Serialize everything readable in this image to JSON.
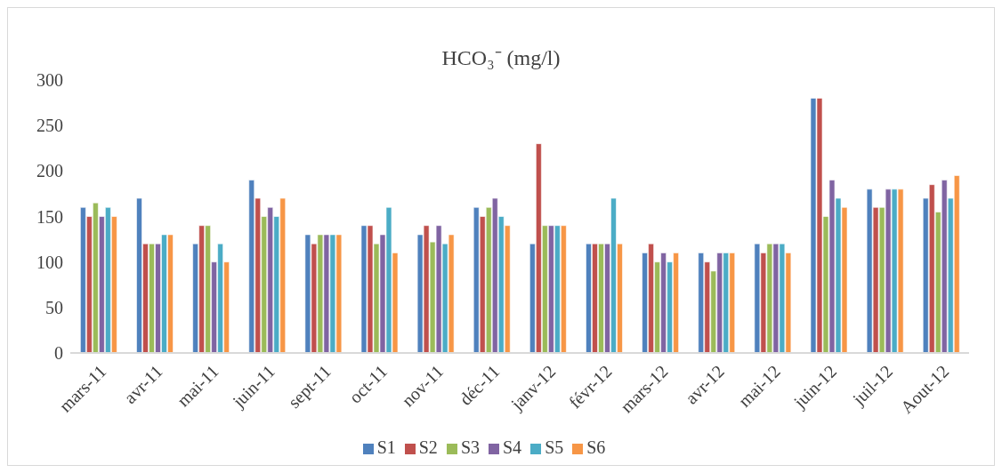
{
  "chart_data": {
    "type": "bar",
    "title": "HCO₃⁻ (mg/l)",
    "categories": [
      "mars-11",
      "avr-11",
      "mai-11",
      "juin-11",
      "sept-11",
      "oct-11",
      "nov-11",
      "déc-11",
      "janv-12",
      "févr-12",
      "mars-12",
      "avr-12",
      "mai-12",
      "juin-12",
      "juil-12",
      "Aout-12"
    ],
    "series": [
      {
        "name": "S1",
        "color": "#4f81bd",
        "values": [
          160,
          170,
          120,
          190,
          130,
          140,
          130,
          160,
          120,
          120,
          110,
          110,
          120,
          280,
          180,
          170
        ]
      },
      {
        "name": "S2",
        "color": "#c0504d",
        "values": [
          150,
          120,
          140,
          170,
          120,
          140,
          140,
          150,
          230,
          120,
          120,
          100,
          110,
          280,
          160,
          185
        ]
      },
      {
        "name": "S3",
        "color": "#9bbb59",
        "values": [
          165,
          120,
          140,
          150,
          130,
          120,
          122,
          160,
          140,
          120,
          100,
          90,
          120,
          150,
          160,
          155
        ]
      },
      {
        "name": "S4",
        "color": "#8064a2",
        "values": [
          150,
          120,
          100,
          160,
          130,
          130,
          140,
          170,
          140,
          120,
          110,
          110,
          120,
          190,
          180,
          190
        ]
      },
      {
        "name": "S5",
        "color": "#4bacc6",
        "values": [
          160,
          130,
          120,
          150,
          130,
          160,
          120,
          150,
          140,
          170,
          100,
          110,
          120,
          170,
          180,
          170
        ]
      },
      {
        "name": "S6",
        "color": "#f79646",
        "values": [
          150,
          130,
          100,
          170,
          130,
          110,
          130,
          140,
          140,
          120,
          110,
          110,
          110,
          160,
          180,
          195
        ]
      }
    ],
    "ylim": [
      0,
      300
    ],
    "yticks": [
      0,
      50,
      100,
      150,
      200,
      250,
      300
    ],
    "grid": false,
    "legend": "bottom"
  }
}
